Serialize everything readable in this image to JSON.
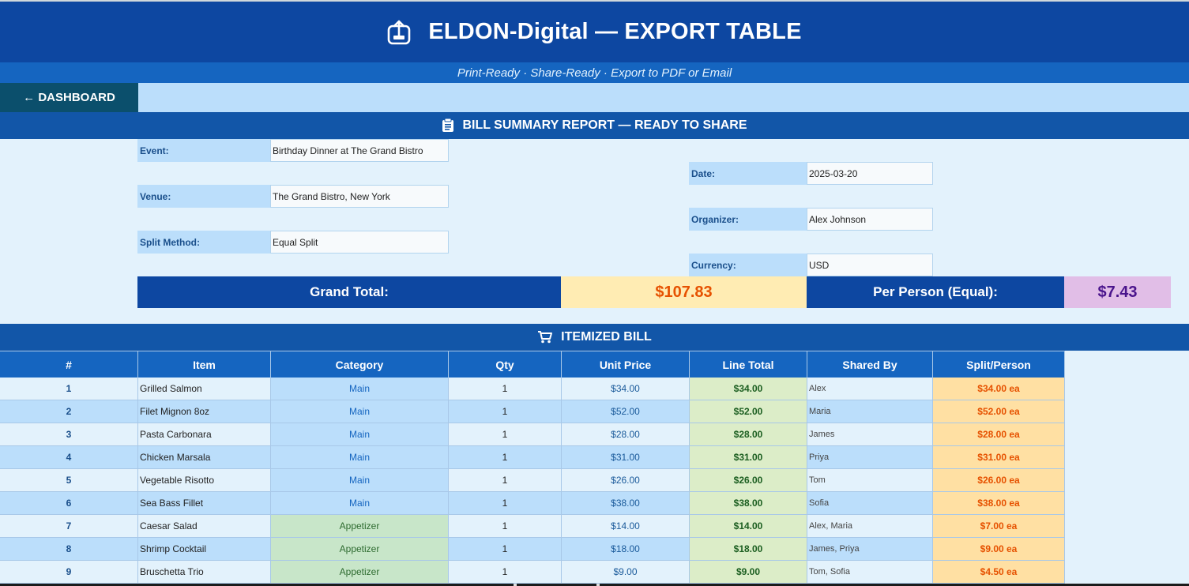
{
  "header": {
    "title": "ELDON-Digital — EXPORT TABLE",
    "subtitle": "Print-Ready · Share-Ready · Export to PDF or Email",
    "icon": "export-icon"
  },
  "nav": {
    "dashboard_label": "← DASHBOARD"
  },
  "summary": {
    "title": "BILL SUMMARY REPORT — READY TO SHARE",
    "icon": "clipboard-icon",
    "event_label": "Event:",
    "event_value": "Birthday Dinner at The Grand Bistro",
    "venue_label": "Venue:",
    "venue_value": "The Grand Bistro, New York",
    "split_label": "Split Method:",
    "split_value": "Equal Split",
    "date_label": "Date:",
    "date_value": "2025-03-20",
    "organizer_label": "Organizer:",
    "organizer_value": "Alex Johnson",
    "currency_label": "Currency:",
    "currency_value": "USD",
    "grand_total_label": "Grand Total:",
    "grand_total_value": "$107.83",
    "per_person_label": "Per Person (Equal):",
    "per_person_value": "$7.43"
  },
  "itemized": {
    "title": "ITEMIZED BILL",
    "icon": "cart-icon",
    "columns": [
      "#",
      "Item",
      "Category",
      "Qty",
      "Unit Price",
      "Line Total",
      "Shared By",
      "Split/Person"
    ],
    "rows": [
      {
        "num": "1",
        "item": "Grilled Salmon",
        "category": "Main",
        "qty": "1",
        "unit": "$34.00",
        "line": "$34.00",
        "shared": "Alex",
        "split": "$34.00 ea"
      },
      {
        "num": "2",
        "item": "Filet Mignon 8oz",
        "category": "Main",
        "qty": "1",
        "unit": "$52.00",
        "line": "$52.00",
        "shared": "Maria",
        "split": "$52.00 ea"
      },
      {
        "num": "3",
        "item": "Pasta Carbonara",
        "category": "Main",
        "qty": "1",
        "unit": "$28.00",
        "line": "$28.00",
        "shared": "James",
        "split": "$28.00 ea"
      },
      {
        "num": "4",
        "item": "Chicken Marsala",
        "category": "Main",
        "qty": "1",
        "unit": "$31.00",
        "line": "$31.00",
        "shared": "Priya",
        "split": "$31.00 ea"
      },
      {
        "num": "5",
        "item": "Vegetable Risotto",
        "category": "Main",
        "qty": "1",
        "unit": "$26.00",
        "line": "$26.00",
        "shared": "Tom",
        "split": "$26.00 ea"
      },
      {
        "num": "6",
        "item": "Sea Bass Fillet",
        "category": "Main",
        "qty": "1",
        "unit": "$38.00",
        "line": "$38.00",
        "shared": "Sofia",
        "split": "$38.00 ea"
      },
      {
        "num": "7",
        "item": "Caesar Salad",
        "category": "Appetizer",
        "qty": "1",
        "unit": "$14.00",
        "line": "$14.00",
        "shared": "Alex, Maria",
        "split": "$7.00 ea"
      },
      {
        "num": "8",
        "item": "Shrimp Cocktail",
        "category": "Appetizer",
        "qty": "1",
        "unit": "$18.00",
        "line": "$18.00",
        "shared": "James, Priya",
        "split": "$9.00 ea"
      },
      {
        "num": "9",
        "item": "Bruschetta Trio",
        "category": "Appetizer",
        "qty": "1",
        "unit": "$9.00",
        "line": "$9.00",
        "shared": "Tom, Sofia",
        "split": "$4.50 ea"
      }
    ]
  }
}
